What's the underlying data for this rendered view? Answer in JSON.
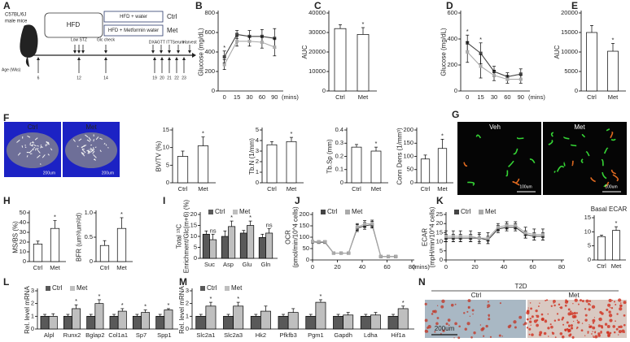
{
  "panel_letters": [
    "A",
    "B",
    "C",
    "D",
    "E",
    "F",
    "G",
    "H",
    "I",
    "J",
    "K",
    "L",
    "M",
    "N"
  ],
  "diagram": {
    "mouse_label": [
      "C57BL/6J",
      "male mice"
    ],
    "hfd": "HFD",
    "water": "HFD + water",
    "metformin": "HFD + Metformin water",
    "ctrl": "Ctrl",
    "met": "Met",
    "events": [
      "Low STZ",
      "Glc check",
      "DXA",
      "GTT",
      "ITT",
      "Serum",
      "Harvest"
    ],
    "age_label": "Age (Wks)",
    "weeks": [
      "6",
      "12",
      "14",
      "19",
      "20",
      "21",
      "22",
      "23"
    ]
  },
  "images": {
    "f": {
      "labels": [
        "Ctrl",
        "Met"
      ],
      "scale": [
        "200um",
        "200um"
      ]
    },
    "g": {
      "labels": [
        "Veh",
        "Met"
      ],
      "scale": [
        "100um",
        "100um"
      ]
    },
    "n": {
      "title": "T2D",
      "labels": [
        "Ctrl",
        "Met"
      ],
      "scale": "200um"
    }
  },
  "chart_data": [
    {
      "type": "line",
      "ylabel": "Glucose (mg/dL)",
      "categories": [
        "0",
        "15",
        "30",
        "60",
        "90"
      ],
      "xunit": "(mins)",
      "ylim": [
        0,
        800
      ],
      "yticks": [
        0,
        200,
        400,
        600,
        800
      ],
      "series": [
        {
          "color": "#444444",
          "values": [
            350,
            580,
            560,
            560,
            540
          ],
          "errors": [
            60,
            40,
            60,
            70,
            100
          ],
          "sig": [
            "*",
            null,
            null,
            null,
            null
          ]
        },
        {
          "color": "#aaaaaa",
          "values": [
            270,
            510,
            510,
            500,
            450
          ],
          "errors": [
            50,
            50,
            50,
            60,
            90
          ]
        }
      ]
    },
    {
      "type": "bar",
      "ylabel": "AUC",
      "categories": [
        "Ctrl",
        "Met"
      ],
      "ylim": [
        0,
        40000
      ],
      "yticks": [
        0,
        10000,
        20000,
        30000,
        40000
      ],
      "series": [
        {
          "color": "#ffffff",
          "values": [
            32000,
            29000
          ],
          "errors": [
            2000,
            3500
          ],
          "sig": [
            null,
            "*"
          ]
        }
      ]
    },
    {
      "type": "line",
      "ylabel": "Glucose (mg/dL)",
      "categories": [
        "0",
        "15",
        "30",
        "60",
        "90"
      ],
      "xunit": "(mins)",
      "ylim": [
        0,
        600
      ],
      "yticks": [
        0,
        200,
        400,
        600
      ],
      "series": [
        {
          "color": "#444444",
          "values": [
            370,
            290,
            150,
            110,
            130
          ],
          "errors": [
            60,
            80,
            40,
            30,
            40
          ],
          "sig": [
            "*",
            "*",
            null,
            null,
            null
          ]
        },
        {
          "color": "#aaaaaa",
          "values": [
            300,
            190,
            120,
            90,
            90
          ],
          "errors": [
            80,
            90,
            40,
            30,
            30
          ]
        }
      ]
    },
    {
      "type": "bar",
      "ylabel": "AUC",
      "categories": [
        "Ctrl",
        "Met"
      ],
      "ylim": [
        0,
        20000
      ],
      "yticks": [
        0,
        5000,
        10000,
        15000,
        20000
      ],
      "series": [
        {
          "color": "#ffffff",
          "values": [
            15000,
            10200
          ],
          "errors": [
            1800,
            2000
          ],
          "sig": [
            null,
            "*"
          ]
        }
      ]
    },
    {
      "type": "bar",
      "ylabel": "BV/TV (%)",
      "categories": [
        "Ctrl",
        "Met"
      ],
      "ylim": [
        0,
        15
      ],
      "yticks": [
        0,
        5,
        10,
        15
      ],
      "series": [
        {
          "color": "#ffffff",
          "values": [
            7.5,
            10.5
          ],
          "errors": [
            1.5,
            2.5
          ],
          "sig": [
            null,
            "*"
          ]
        }
      ]
    },
    {
      "type": "bar",
      "ylabel": "Tb.N (1/mm)",
      "categories": [
        "Ctrl",
        "Met"
      ],
      "ylim": [
        0,
        5
      ],
      "yticks": [
        0,
        1,
        2,
        3,
        4,
        5
      ],
      "series": [
        {
          "color": "#ffffff",
          "values": [
            3.6,
            3.9
          ],
          "errors": [
            0.3,
            0.4
          ],
          "sig": [
            null,
            "*"
          ]
        }
      ]
    },
    {
      "type": "bar",
      "ylabel": "Tb.Sp (mm)",
      "categories": [
        "Ctrl",
        "Met"
      ],
      "ylim": [
        0,
        0.4
      ],
      "yticks": [
        0,
        0.1,
        0.2,
        0.3,
        0.4
      ],
      "series": [
        {
          "color": "#ffffff",
          "values": [
            0.27,
            0.24
          ],
          "errors": [
            0.02,
            0.03
          ],
          "sig": [
            null,
            "*"
          ]
        }
      ]
    },
    {
      "type": "bar",
      "ylabel": "Conn Dens (1/mm³)",
      "categories": [
        "Ctrl",
        "Met"
      ],
      "ylim": [
        0,
        200
      ],
      "yticks": [
        0,
        50,
        100,
        150,
        200
      ],
      "series": [
        {
          "color": "#ffffff",
          "values": [
            90,
            130
          ],
          "errors": [
            15,
            35
          ],
          "sig": [
            null,
            "*"
          ]
        }
      ]
    },
    {
      "type": "bar",
      "ylabel": "MS/BS (%)",
      "categories": [
        "Ctrl",
        "Met"
      ],
      "ylim": [
        0,
        50
      ],
      "yticks": [
        0,
        10,
        20,
        30,
        40,
        50
      ],
      "series": [
        {
          "color": "#ffffff",
          "values": [
            18,
            34
          ],
          "errors": [
            3,
            8
          ],
          "sig": [
            null,
            "*"
          ]
        }
      ]
    },
    {
      "type": "bar",
      "ylabel": "BFR (um³/um²/d)",
      "categories": [
        "Ctrl",
        "Met"
      ],
      "ylim": [
        0,
        1
      ],
      "yticks": [
        0,
        0.5,
        {
          "value": 1,
          "label": "1.0"
        }
      ],
      "series": [
        {
          "color": "#ffffff",
          "values": [
            0.33,
            0.68
          ],
          "errors": [
            0.1,
            0.22
          ],
          "sig": [
            null,
            "*"
          ]
        }
      ]
    },
    {
      "type": "bar",
      "ylabel": [
        "Total ¹³C",
        "Enrichment/Glc(m+6) (%)"
      ],
      "categories": [
        "Suc",
        "Asp",
        "Glu",
        "Gln"
      ],
      "ylim": [
        0,
        20
      ],
      "yticks": [
        0,
        5,
        10,
        15,
        20
      ],
      "series": [
        {
          "name": "Ctrl",
          "color": "#595959",
          "values": [
            11,
            10,
            11.5,
            9.5
          ],
          "errors": [
            1.5,
            2.5,
            1.2,
            1.5
          ]
        },
        {
          "name": "Met",
          "color": "#bfbfbf",
          "values": [
            8.5,
            14.5,
            15,
            11.5
          ],
          "errors": [
            2.5,
            2.5,
            2,
            2
          ],
          "sig": [
            "ns",
            "*",
            "*",
            "ns"
          ]
        }
      ]
    },
    {
      "type": "line",
      "ylabel": [
        "OCR",
        "(pmol/min/10^4 cells)"
      ],
      "x": [
        0,
        5,
        10,
        17,
        23,
        29,
        36,
        42,
        48,
        55,
        61,
        67
      ],
      "xlim": [
        0,
        80
      ],
      "xticks": [
        0,
        20,
        40,
        60,
        80
      ],
      "xunit": "(mins)",
      "ylim": [
        0,
        200
      ],
      "yticks": [
        0,
        50,
        100,
        150,
        200
      ],
      "series": [
        {
          "name": "Ctrl",
          "color": "#444444",
          "values": [
            80,
            78,
            78,
            30,
            30,
            30,
            140,
            150,
            155,
            15,
            15,
            15
          ],
          "errors": [
            5,
            5,
            5,
            3,
            3,
            3,
            15,
            15,
            15,
            3,
            3,
            3
          ]
        },
        {
          "name": "Met",
          "color": "#aaaaaa",
          "values": [
            82,
            80,
            80,
            30,
            30,
            30,
            145,
            158,
            160,
            15,
            15,
            15
          ],
          "errors": [
            5,
            5,
            5,
            3,
            3,
            3,
            15,
            15,
            15,
            3,
            3,
            3
          ]
        }
      ]
    },
    {
      "type": "line",
      "ylabel": [
        "ECAR",
        "(mpH/min/10^4 cells)"
      ],
      "x": [
        0,
        5,
        10,
        17,
        23,
        29,
        36,
        42,
        48,
        55,
        61,
        67
      ],
      "xlim": [
        0,
        80
      ],
      "xticks": [
        0,
        20,
        40,
        60,
        80
      ],
      "ylim": [
        0,
        25
      ],
      "yticks": [
        0,
        5,
        10,
        15,
        20,
        25
      ],
      "series": [
        {
          "name": "Ctrl",
          "color": "#444444",
          "values": [
            12,
            12,
            12,
            12,
            12,
            11,
            17,
            18,
            18,
            14,
            13,
            13
          ],
          "errors": [
            2,
            2,
            2,
            2,
            2,
            2,
            2,
            2,
            2,
            2,
            2,
            2
          ]
        },
        {
          "name": "Met",
          "color": "#aaaaaa",
          "values": [
            13,
            13,
            13,
            13,
            12,
            12,
            18,
            19,
            19,
            15,
            14,
            14
          ],
          "errors": [
            3,
            3,
            3,
            3,
            3,
            3,
            2,
            2,
            2,
            3,
            3,
            3
          ]
        }
      ]
    },
    {
      "type": "bar",
      "title": "Basal ECAR",
      "categories": [
        "Ctrl",
        "Met"
      ],
      "ylim": [
        0,
        15
      ],
      "yticks": [
        0,
        5,
        10,
        15
      ],
      "series": [
        {
          "color": "#ffffff",
          "values": [
            8.3,
            10.5
          ],
          "errors": [
            0.5,
            1.3
          ],
          "sig": [
            null,
            "*"
          ]
        }
      ]
    },
    {
      "type": "bar",
      "ylabel": "Rel. level mRNA",
      "categories": [
        "Alpl",
        "Runx2",
        "Bglap2",
        "Col1a1",
        "Sp7",
        "Spp1"
      ],
      "ylim": [
        0,
        3
      ],
      "yticks": [
        0,
        1,
        2,
        3
      ],
      "series": [
        {
          "name": "Ctrl",
          "color": "#595959",
          "values": [
            1,
            1,
            1,
            1,
            1,
            1
          ],
          "errors": [
            0.15,
            0.15,
            0.15,
            0.15,
            0.15,
            0.15
          ]
        },
        {
          "name": "Met",
          "color": "#bfbfbf",
          "values": [
            1,
            1.6,
            2,
            1.4,
            1.3,
            1.5
          ],
          "errors": [
            0.2,
            0.3,
            0.3,
            0.2,
            0.2,
            0.1
          ],
          "sig": [
            null,
            "*",
            "*",
            "*",
            "*",
            "*"
          ]
        }
      ]
    },
    {
      "type": "bar",
      "ylabel": "Rel. level mRNA",
      "categories": [
        "Slc2a1",
        "Slc2a3",
        "Hk2",
        "Pfkfb3",
        "Pgm1",
        "Gapdh",
        "Ldha",
        "Hif1a"
      ],
      "ylim": [
        0,
        3
      ],
      "yticks": [
        0,
        1,
        2,
        3
      ],
      "series": [
        {
          "name": "Ctrl",
          "color": "#595959",
          "values": [
            1,
            1,
            1,
            1,
            1,
            1,
            1,
            1
          ],
          "errors": [
            0.15,
            0.15,
            0.15,
            0.15,
            0.15,
            0.15,
            0.15,
            0.15
          ]
        },
        {
          "name": "Met",
          "color": "#bfbfbf",
          "values": [
            1.8,
            1.8,
            1.4,
            1.3,
            2.1,
            1.1,
            1.1,
            1.6
          ],
          "errors": [
            0.3,
            0.3,
            0.4,
            0.3,
            0.2,
            0.2,
            0.2,
            0.2
          ],
          "sig": [
            "*",
            "*",
            null,
            null,
            "*",
            null,
            null,
            "*"
          ]
        }
      ]
    }
  ]
}
